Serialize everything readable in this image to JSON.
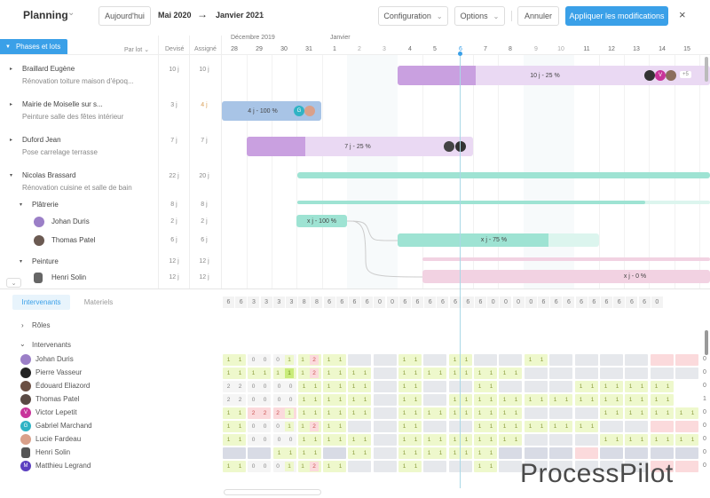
{
  "topbar": {
    "title": "Planning",
    "today_button": "Aujourd'hui",
    "period_start": "Mai 2020",
    "period_arrow": "→",
    "period_end": "Janvier 2021",
    "configuration": "Configuration",
    "options": "Options",
    "cancel": "Annuler",
    "apply": "Appliquer les modifications",
    "close": "×"
  },
  "header": {
    "phases_button": "Phases et lots",
    "group_by": "Par lot",
    "col_estimated": "Devisé",
    "col_assigned": "Assigné",
    "month_1": "Décembre 2019",
    "month_2": "Janvier",
    "days": [
      "28",
      "29",
      "30",
      "31",
      "1",
      "2",
      "3",
      "4",
      "5",
      "6",
      "7",
      "8",
      "9",
      "10",
      "11",
      "12",
      "13",
      "14",
      "15"
    ]
  },
  "tasks": [
    {
      "name": "Braillard Eugène",
      "sub": "Rénovation toiture maison d'époq...",
      "estimated": "10 j",
      "assigned": "10 j"
    },
    {
      "name": "Mairie de Moiselle sur s...",
      "sub": "Peinture salle des fêtes intérieur",
      "estimated": "3 j",
      "assigned": "4 j"
    },
    {
      "name": "Duford Jean",
      "sub": "Pose carrelage terrasse",
      "estimated": "7 j",
      "assigned": "7 j"
    },
    {
      "name": "Nicolas Brassard",
      "sub": "Rénovation cuisine et salle de bain",
      "estimated": "22 j",
      "assigned": "20 j"
    },
    {
      "name": "Plâtrerie",
      "estimated": "8 j",
      "assigned": "8 j"
    },
    {
      "name": "Johan Duris",
      "estimated": "2 j",
      "assigned": "2 j"
    },
    {
      "name": "Thomas Patel",
      "estimated": "6 j",
      "assigned": "6 j"
    },
    {
      "name": "Peinture",
      "estimated": "12 j",
      "assigned": "12 j"
    },
    {
      "name": "Henri Solin",
      "estimated": "12 j",
      "assigned": "12 j"
    }
  ],
  "bars": {
    "b1": "10 j - 25 %",
    "b1_more": "+5",
    "b2": "4 j - 100 %",
    "b3": "7 j - 25 %",
    "b4": "x j - 100 %",
    "b5": "x j - 75 %",
    "b6": "x j - 0 %",
    "avatar_g": "G",
    "avatar_v": "V"
  },
  "bottom": {
    "tab_active": "Intervenants",
    "tab_inactive": "Materiels",
    "summary": [
      "6",
      "6",
      "3",
      "3",
      "3",
      "3",
      "8",
      "8",
      "6",
      "6",
      "6",
      "6",
      "0",
      "0",
      "6",
      "6",
      "6",
      "6",
      "6",
      "6",
      "6",
      "0",
      "0",
      "0",
      "0",
      "6",
      "6",
      "6",
      "6",
      "6",
      "6",
      "6",
      "6",
      "6",
      "0"
    ],
    "group_roles": "Rôles",
    "group_people": "Intervenants",
    "people": [
      {
        "name": "Johan Duris",
        "initial": ""
      },
      {
        "name": "Pierre Vasseur",
        "initial": ""
      },
      {
        "name": "Édouard Eliazord",
        "initial": ""
      },
      {
        "name": "Thomas Patel",
        "initial": ""
      },
      {
        "name": "Victor Lepetit",
        "initial": "V"
      },
      {
        "name": "Gabriel Marchand",
        "initial": "G"
      },
      {
        "name": "Lucie Fardeau",
        "initial": ""
      },
      {
        "name": "Henri Solin",
        "initial": ""
      },
      {
        "name": "Matthieu Legrand",
        "initial": "M"
      }
    ],
    "row_ends": [
      "0",
      "0",
      "0",
      "1",
      "0",
      "0",
      "0",
      "0",
      "0"
    ]
  },
  "watermark": "ProcessPilot",
  "colors": {
    "accent": "#3aa0e8",
    "purple": "#c9a0e0",
    "purple_light": "#ead9f3",
    "blue_bar": "#a8c4e6",
    "teal": "#9ee3d3",
    "teal_light": "#dcf5ee",
    "pink": "#f2d2e2"
  }
}
